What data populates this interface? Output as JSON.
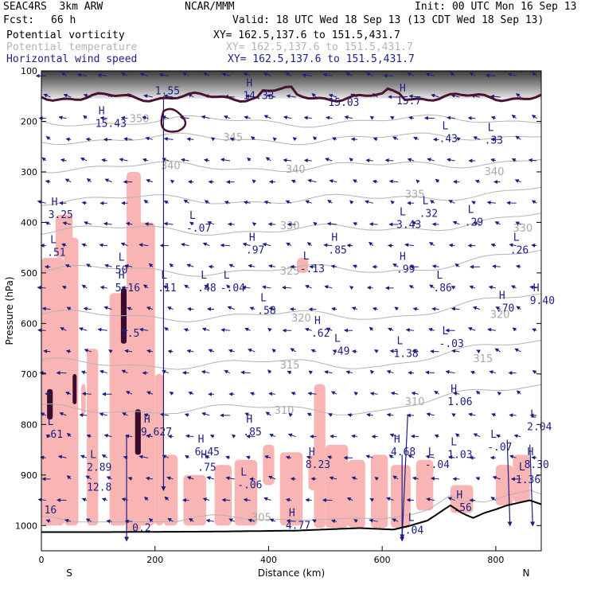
{
  "header": {
    "model": "SEAC4RS  3km ARW",
    "org": "NCAR/MMM",
    "init": "Init: 00 UTC Mon 16 Sep 13",
    "fcst_label": "Fcst:",
    "fcst_value": "66 h",
    "valid": "Valid: 18 UTC Wed 18 Sep 13 (13 CDT Wed 18 Sep 13)"
  },
  "legend": [
    {
      "label": "Potential vorticity",
      "xy": "XY= 162.5,137.6 to 151.5,431.7",
      "color": "#000000"
    },
    {
      "label": "Potential temperature",
      "xy": "XY= 162.5,137.6 to 151.5,431.7",
      "color": "#b4b4b4"
    },
    {
      "label": "Horizontal wind speed",
      "xy": "XY= 162.5,137.6 to 151.5,431.7",
      "color": "#1e1e82"
    }
  ],
  "chart_data": {
    "type": "cross-section",
    "xlabel": "Distance (km)",
    "ylabel": "Pressure (hPa)",
    "xlim": [
      0,
      880
    ],
    "ylim": [
      1050,
      100
    ],
    "x_ticks": [
      0,
      200,
      400,
      600,
      800
    ],
    "y_ticks": [
      100,
      200,
      300,
      400,
      500,
      600,
      700,
      800,
      900,
      1000
    ],
    "x_end_labels": {
      "left": "S",
      "right": "N"
    },
    "theta_contours": [
      {
        "value": 350,
        "pressure": 200
      },
      {
        "value": 345,
        "pressure": 235
      },
      {
        "value": 340,
        "pressure": 290
      },
      {
        "value": 335,
        "pressure": 355
      },
      {
        "value": 330,
        "pressure": 415
      },
      {
        "value": 325,
        "pressure": 495
      },
      {
        "value": 320,
        "pressure": 585
      },
      {
        "value": 315,
        "pressure": 680
      },
      {
        "value": 310,
        "pressure": 770
      },
      {
        "value": 305,
        "pressure": 990
      }
    ],
    "theta_labels": [
      {
        "text": "350",
        "x": 155,
        "p": 195
      },
      {
        "text": "345",
        "x": 320,
        "p": 232
      },
      {
        "text": "340",
        "x": 210,
        "p": 288
      },
      {
        "text": "340",
        "x": 430,
        "p": 295
      },
      {
        "text": "340",
        "x": 780,
        "p": 300
      },
      {
        "text": "335",
        "x": 640,
        "p": 345
      },
      {
        "text": "330",
        "x": 420,
        "p": 407
      },
      {
        "text": "330",
        "x": 830,
        "p": 412
      },
      {
        "text": "325",
        "x": 420,
        "p": 497
      },
      {
        "text": "320",
        "x": 440,
        "p": 590
      },
      {
        "text": "320",
        "x": 790,
        "p": 583
      },
      {
        "text": "315",
        "x": 420,
        "p": 683
      },
      {
        "text": "315",
        "x": 760,
        "p": 670
      },
      {
        "text": "310",
        "x": 410,
        "p": 773
      },
      {
        "text": "310",
        "x": 640,
        "p": 755
      },
      {
        "text": "305",
        "x": 370,
        "p": 985
      }
    ],
    "extrema": [
      {
        "kind": "H",
        "value": "15.43",
        "x": 95,
        "p": 205
      },
      {
        "kind": "H",
        "value": "14.33",
        "x": 355,
        "p": 150
      },
      {
        "kind": "",
        "value": "15.03",
        "x": 505,
        "p": 163
      },
      {
        "kind": "H",
        "value": "15.7",
        "x": 625,
        "p": 160
      },
      {
        "kind": "L",
        "value": ".43",
        "x": 700,
        "p": 235
      },
      {
        "kind": "L",
        "value": ".33",
        "x": 780,
        "p": 238
      },
      {
        "kind": "",
        "value": "1.55",
        "x": 200,
        "p": 140
      },
      {
        "kind": "H",
        "value": "3.25",
        "x": 12,
        "p": 385
      },
      {
        "kind": "L",
        "value": ".51",
        "x": 10,
        "p": 460
      },
      {
        "kind": "L",
        "value": "-.07",
        "x": 255,
        "p": 412
      },
      {
        "kind": "L",
        "value": ".32",
        "x": 665,
        "p": 383
      },
      {
        "kind": "L",
        "value": "3.43",
        "x": 625,
        "p": 405
      },
      {
        "kind": "L",
        "value": ".29",
        "x": 745,
        "p": 400
      },
      {
        "kind": "H",
        "value": ".97",
        "x": 360,
        "p": 455
      },
      {
        "kind": "H",
        "value": ".85",
        "x": 505,
        "p": 455
      },
      {
        "kind": "L",
        "value": "-.13",
        "x": 455,
        "p": 492
      },
      {
        "kind": "H",
        "value": ".99",
        "x": 625,
        "p": 493
      },
      {
        "kind": "L",
        "value": ".26",
        "x": 825,
        "p": 455
      },
      {
        "kind": "L",
        "value": ".86",
        "x": 690,
        "p": 530
      },
      {
        "kind": "L",
        "value": "50",
        "x": 130,
        "p": 495
      },
      {
        "kind": "H",
        "value": "5.16",
        "x": 130,
        "p": 530
      },
      {
        "kind": "L",
        "value": ".11",
        "x": 205,
        "p": 530
      },
      {
        "kind": "L",
        "value": ".48",
        "x": 275,
        "p": 530
      },
      {
        "kind": "L",
        "value": "-.04",
        "x": 315,
        "p": 530
      },
      {
        "kind": "L",
        "value": ".58",
        "x": 380,
        "p": 575
      },
      {
        "kind": "H",
        "value": ".70",
        "x": 800,
        "p": 570
      },
      {
        "kind": "H",
        "value": "9.40",
        "x": 860,
        "p": 555
      },
      {
        "kind": "",
        "value": "1.5",
        "x": 140,
        "p": 620
      },
      {
        "kind": "H",
        "value": ".62",
        "x": 475,
        "p": 620
      },
      {
        "kind": "L",
        "value": ".49",
        "x": 510,
        "p": 655
      },
      {
        "kind": "L",
        "value": "1.38",
        "x": 620,
        "p": 660
      },
      {
        "kind": "L",
        "value": "-.03",
        "x": 700,
        "p": 640
      },
      {
        "kind": "H",
        "value": "1.06",
        "x": 715,
        "p": 755
      },
      {
        "kind": "L",
        "value": ".61",
        "x": 5,
        "p": 820
      },
      {
        "kind": "H",
        "value": "9.627",
        "x": 175,
        "p": 815
      },
      {
        "kind": "H",
        "value": ".85",
        "x": 355,
        "p": 815
      },
      {
        "kind": "L",
        "value": "2.04",
        "x": 855,
        "p": 805
      },
      {
        "kind": "H",
        "value": "6.45",
        "x": 270,
        "p": 855
      },
      {
        "kind": "H",
        "value": "4.68",
        "x": 615,
        "p": 855
      },
      {
        "kind": "L",
        "value": "1.03",
        "x": 715,
        "p": 860
      },
      {
        "kind": "L",
        "value": "-.07",
        "x": 785,
        "p": 845
      },
      {
        "kind": "H",
        "value": "8.23",
        "x": 465,
        "p": 880
      },
      {
        "kind": "H",
        "value": ".75",
        "x": 275,
        "p": 885
      },
      {
        "kind": "L",
        "value": "-.04",
        "x": 675,
        "p": 880
      },
      {
        "kind": "L",
        "value": "2.89",
        "x": 80,
        "p": 885
      },
      {
        "kind": "H",
        "value": "8.30",
        "x": 850,
        "p": 880
      },
      {
        "kind": "",
        "value": "12.8",
        "x": 80,
        "p": 925
      },
      {
        "kind": "L",
        "value": "-.06",
        "x": 345,
        "p": 920
      },
      {
        "kind": "L",
        "value": "1.36",
        "x": 835,
        "p": 910
      },
      {
        "kind": "H",
        "value": ".56",
        "x": 725,
        "p": 965
      },
      {
        "kind": "",
        "value": "16",
        "x": 5,
        "p": 970
      },
      {
        "kind": "H",
        "value": "4.77",
        "x": 430,
        "p": 1000
      },
      {
        "kind": "",
        "value": "0.2",
        "x": 160,
        "p": 1005
      },
      {
        "kind": "L",
        "value": ".04",
        "x": 640,
        "p": 1010
      }
    ]
  }
}
